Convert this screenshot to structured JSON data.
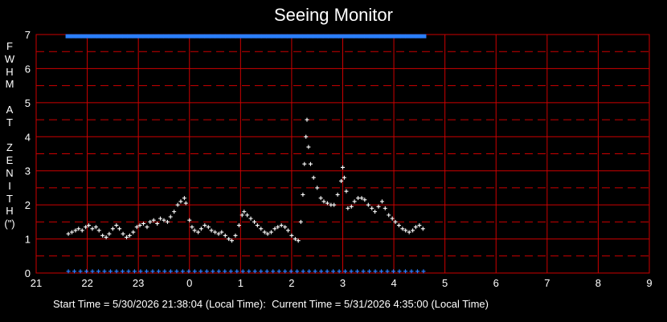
{
  "title": "Seeing Monitor",
  "ylabel_chars": [
    "F",
    "W",
    "H",
    "M",
    "",
    "A",
    "T",
    "",
    "Z",
    "E",
    "N",
    "I",
    "T",
    "H",
    "(\")"
  ],
  "footer": "Start Time = 5/30/2026 21:38:04 (Local Time):  Current Time = 5/31/2026 4:35:00 (Local Time)",
  "colors": {
    "background": "#000000",
    "grid": "#cc0000",
    "points": "#ffffff",
    "markers": "#2a7fff",
    "text": "#ffffff"
  },
  "chart_data": {
    "type": "scatter",
    "title": "Seeing Monitor",
    "ylabel": "FWHM AT ZENITH (\")",
    "xlim": [
      21,
      33
    ],
    "ylim": [
      0,
      7
    ],
    "x_tick_labels": [
      "21",
      "22",
      "23",
      "0",
      "1",
      "2",
      "3",
      "4",
      "5",
      "6",
      "7",
      "8",
      "9"
    ],
    "y_tick_labels": [
      "0",
      "1",
      "2",
      "3",
      "4",
      "5",
      "6",
      "7"
    ],
    "grid": true,
    "marker_rows": {
      "top_y": 6.95,
      "bottom_y": 0.05,
      "x_start": 21.63,
      "x_end": 28.58
    },
    "series": [
      {
        "marker": "+",
        "points": [
          [
            21.63,
            1.15
          ],
          [
            21.7,
            1.2
          ],
          [
            21.77,
            1.25
          ],
          [
            21.83,
            1.3
          ],
          [
            21.9,
            1.25
          ],
          [
            21.97,
            1.35
          ],
          [
            22.03,
            1.4
          ],
          [
            22.1,
            1.3
          ],
          [
            22.17,
            1.35
          ],
          [
            22.23,
            1.25
          ],
          [
            22.3,
            1.1
          ],
          [
            22.37,
            1.05
          ],
          [
            22.43,
            1.15
          ],
          [
            22.5,
            1.3
          ],
          [
            22.57,
            1.4
          ],
          [
            22.63,
            1.3
          ],
          [
            22.7,
            1.15
          ],
          [
            22.77,
            1.05
          ],
          [
            22.83,
            1.1
          ],
          [
            22.9,
            1.2
          ],
          [
            22.97,
            1.35
          ],
          [
            23.03,
            1.4
          ],
          [
            23.1,
            1.45
          ],
          [
            23.17,
            1.35
          ],
          [
            23.23,
            1.5
          ],
          [
            23.3,
            1.55
          ],
          [
            23.37,
            1.45
          ],
          [
            23.43,
            1.6
          ],
          [
            23.5,
            1.55
          ],
          [
            23.57,
            1.5
          ],
          [
            23.63,
            1.65
          ],
          [
            23.7,
            1.8
          ],
          [
            23.77,
            2.0
          ],
          [
            23.83,
            2.1
          ],
          [
            23.9,
            2.2
          ],
          [
            23.93,
            2.05
          ],
          [
            24.0,
            1.55
          ],
          [
            24.05,
            1.35
          ],
          [
            24.1,
            1.25
          ],
          [
            24.17,
            1.2
          ],
          [
            24.23,
            1.3
          ],
          [
            24.3,
            1.4
          ],
          [
            24.37,
            1.35
          ],
          [
            24.43,
            1.25
          ],
          [
            24.5,
            1.2
          ],
          [
            24.57,
            1.15
          ],
          [
            24.63,
            1.2
          ],
          [
            24.7,
            1.1
          ],
          [
            24.77,
            1.0
          ],
          [
            24.83,
            0.95
          ],
          [
            24.9,
            1.1
          ],
          [
            24.97,
            1.4
          ],
          [
            25.03,
            1.7
          ],
          [
            25.07,
            1.8
          ],
          [
            25.13,
            1.7
          ],
          [
            25.2,
            1.6
          ],
          [
            25.27,
            1.5
          ],
          [
            25.33,
            1.4
          ],
          [
            25.4,
            1.3
          ],
          [
            25.47,
            1.2
          ],
          [
            25.53,
            1.15
          ],
          [
            25.6,
            1.2
          ],
          [
            25.67,
            1.3
          ],
          [
            25.73,
            1.35
          ],
          [
            25.8,
            1.4
          ],
          [
            25.87,
            1.35
          ],
          [
            25.93,
            1.25
          ],
          [
            26.0,
            1.1
          ],
          [
            26.07,
            1.0
          ],
          [
            26.13,
            0.95
          ],
          [
            26.18,
            1.5
          ],
          [
            26.22,
            2.3
          ],
          [
            26.25,
            3.2
          ],
          [
            26.28,
            4.0
          ],
          [
            26.3,
            4.5
          ],
          [
            26.33,
            3.7
          ],
          [
            26.37,
            3.2
          ],
          [
            26.43,
            2.8
          ],
          [
            26.5,
            2.5
          ],
          [
            26.57,
            2.2
          ],
          [
            26.63,
            2.1
          ],
          [
            26.7,
            2.05
          ],
          [
            26.77,
            2.0
          ],
          [
            26.83,
            2.0
          ],
          [
            26.9,
            2.3
          ],
          [
            26.97,
            2.7
          ],
          [
            27.0,
            3.1
          ],
          [
            27.03,
            2.8
          ],
          [
            27.07,
            2.4
          ],
          [
            27.1,
            1.9
          ],
          [
            27.17,
            1.95
          ],
          [
            27.23,
            2.1
          ],
          [
            27.3,
            2.2
          ],
          [
            27.37,
            2.2
          ],
          [
            27.43,
            2.15
          ],
          [
            27.5,
            2.0
          ],
          [
            27.57,
            1.9
          ],
          [
            27.63,
            1.8
          ],
          [
            27.7,
            1.95
          ],
          [
            27.77,
            2.1
          ],
          [
            27.83,
            1.9
          ],
          [
            27.9,
            1.7
          ],
          [
            27.97,
            1.6
          ],
          [
            28.03,
            1.5
          ],
          [
            28.1,
            1.4
          ],
          [
            28.17,
            1.3
          ],
          [
            28.23,
            1.25
          ],
          [
            28.3,
            1.2
          ],
          [
            28.37,
            1.25
          ],
          [
            28.43,
            1.35
          ],
          [
            28.5,
            1.4
          ],
          [
            28.57,
            1.3
          ]
        ]
      }
    ]
  }
}
